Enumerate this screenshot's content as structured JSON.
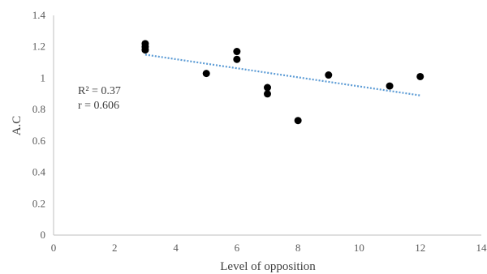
{
  "chart_data": {
    "type": "scatter",
    "title": "",
    "xlabel": "Level of opposition",
    "ylabel": "A.C",
    "xlim": [
      0,
      14
    ],
    "ylim": [
      0,
      1.4
    ],
    "x_ticks": [
      "0",
      "2",
      "4",
      "6",
      "8",
      "10",
      "12",
      "14"
    ],
    "y_ticks": [
      "0",
      "0.2",
      "0.4",
      "0.6",
      "0.8",
      "1",
      "1.2",
      "1.4"
    ],
    "grid": false,
    "legend": "none",
    "points": [
      {
        "x": 3,
        "y": 1.22
      },
      {
        "x": 3,
        "y": 1.2
      },
      {
        "x": 3,
        "y": 1.18
      },
      {
        "x": 5,
        "y": 1.03
      },
      {
        "x": 6,
        "y": 1.17
      },
      {
        "x": 6,
        "y": 1.12
      },
      {
        "x": 7,
        "y": 0.94
      },
      {
        "x": 7,
        "y": 0.9
      },
      {
        "x": 8,
        "y": 0.73
      },
      {
        "x": 9,
        "y": 1.02
      },
      {
        "x": 11,
        "y": 0.95
      },
      {
        "x": 12,
        "y": 1.01
      }
    ],
    "trendline": {
      "type": "linear",
      "style": "dotted",
      "color": "#5b9bd5",
      "x_start": 3,
      "y_start": 1.15,
      "x_end": 12,
      "y_end": 0.89
    },
    "marker_color": "#000000",
    "annotations": {
      "r_squared": "R² = 0.37",
      "r": "r = 0.606"
    }
  }
}
